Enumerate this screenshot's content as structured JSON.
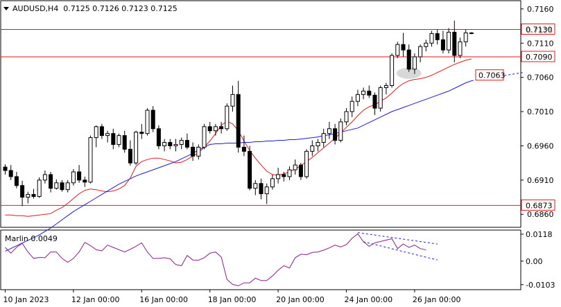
{
  "chart_data": [
    {
      "type": "candlestick",
      "title": "AUDUSD,H4  0.7125 0.7126 0.7123 0.7125",
      "ylim": [
        0.6841,
        0.7172
      ],
      "yticks": [
        {
          "value": 0.686,
          "label": "0.6860"
        },
        {
          "value": 0.691,
          "label": "0.6910"
        },
        {
          "value": 0.696,
          "label": "0.6960"
        },
        {
          "value": 0.701,
          "label": "0.7010"
        },
        {
          "value": 0.706,
          "label": "0.7060"
        },
        {
          "value": 0.711,
          "label": "0.7110"
        },
        {
          "value": 0.716,
          "label": "0.7160"
        }
      ],
      "xticks": [
        {
          "index": 0,
          "label": "10 Jan 2023"
        },
        {
          "index": 12,
          "label": "12 Jan 00:00"
        },
        {
          "index": 24,
          "label": "16 Jan 00:00"
        },
        {
          "index": 36,
          "label": "18 Jan 00:00"
        },
        {
          "index": 48,
          "label": "20 Jan 00:00"
        },
        {
          "index": 60,
          "label": "24 Jan 00:00"
        },
        {
          "index": 72,
          "label": "26 Jan 00:00"
        }
      ],
      "candles": [
        [
          0.6929,
          0.6933,
          0.6918,
          0.6924
        ],
        [
          0.6924,
          0.6932,
          0.691,
          0.6915
        ],
        [
          0.6915,
          0.6922,
          0.6898,
          0.6902
        ],
        [
          0.6902,
          0.6909,
          0.6872,
          0.6885
        ],
        [
          0.6885,
          0.6893,
          0.6876,
          0.6889
        ],
        [
          0.6889,
          0.6897,
          0.6883,
          0.6886
        ],
        [
          0.6886,
          0.6914,
          0.6884,
          0.691
        ],
        [
          0.691,
          0.6924,
          0.6905,
          0.6918
        ],
        [
          0.6918,
          0.6922,
          0.6892,
          0.6898
        ],
        [
          0.6898,
          0.6911,
          0.6896,
          0.6906
        ],
        [
          0.6906,
          0.691,
          0.6893,
          0.6896
        ],
        [
          0.6896,
          0.691,
          0.6892,
          0.6906
        ],
        [
          0.6906,
          0.6926,
          0.6902,
          0.6922
        ],
        [
          0.6922,
          0.6932,
          0.6906,
          0.691
        ],
        [
          0.691,
          0.6915,
          0.69,
          0.6907
        ],
        [
          0.6907,
          0.6975,
          0.6905,
          0.6972
        ],
        [
          0.6972,
          0.699,
          0.6958,
          0.6988
        ],
        [
          0.6988,
          0.6992,
          0.697,
          0.6975
        ],
        [
          0.6975,
          0.6982,
          0.6965,
          0.6978
        ],
        [
          0.6978,
          0.6985,
          0.6955,
          0.6962
        ],
        [
          0.6962,
          0.6978,
          0.6958,
          0.6975
        ],
        [
          0.6975,
          0.6982,
          0.695,
          0.6955
        ],
        [
          0.6955,
          0.6968,
          0.6931,
          0.6935
        ],
        [
          0.6935,
          0.6982,
          0.6932,
          0.698
        ],
        [
          0.698,
          0.6992,
          0.697,
          0.6978
        ],
        [
          0.6978,
          0.7015,
          0.6975,
          0.7012
        ],
        [
          0.7012,
          0.7018,
          0.698,
          0.6985
        ],
        [
          0.6985,
          0.699,
          0.6955,
          0.696
        ],
        [
          0.696,
          0.697,
          0.6952,
          0.6965
        ],
        [
          0.6965,
          0.697,
          0.6955,
          0.696
        ],
        [
          0.696,
          0.697,
          0.6952,
          0.6962
        ],
        [
          0.6962,
          0.6972,
          0.6955,
          0.6968
        ],
        [
          0.6968,
          0.6978,
          0.6955,
          0.6958
        ],
        [
          0.6958,
          0.6965,
          0.6938,
          0.6945
        ],
        [
          0.6945,
          0.6962,
          0.694,
          0.6958
        ],
        [
          0.6958,
          0.6992,
          0.6955,
          0.6988
        ],
        [
          0.6988,
          0.6995,
          0.6978,
          0.6982
        ],
        [
          0.6982,
          0.6992,
          0.6975,
          0.6988
        ],
        [
          0.6988,
          0.6995,
          0.6978,
          0.6985
        ],
        [
          0.6985,
          0.7022,
          0.6982,
          0.7018
        ],
        [
          0.7018,
          0.7048,
          0.701,
          0.7035
        ],
        [
          0.7035,
          0.7055,
          0.695,
          0.6958
        ],
        [
          0.6958,
          0.6975,
          0.6945,
          0.6952
        ],
        [
          0.6952,
          0.696,
          0.6895,
          0.6898
        ],
        [
          0.6898,
          0.691,
          0.6888,
          0.6905
        ],
        [
          0.6905,
          0.6912,
          0.6882,
          0.689
        ],
        [
          0.689,
          0.6905,
          0.6875,
          0.69
        ],
        [
          0.69,
          0.6918,
          0.6896,
          0.6912
        ],
        [
          0.6912,
          0.6928,
          0.6905,
          0.6918
        ],
        [
          0.6918,
          0.6922,
          0.6908,
          0.6915
        ],
        [
          0.6915,
          0.693,
          0.691,
          0.6925
        ],
        [
          0.6925,
          0.694,
          0.6918,
          0.6932
        ],
        [
          0.6932,
          0.6935,
          0.691,
          0.6915
        ],
        [
          0.6915,
          0.6955,
          0.6912,
          0.6952
        ],
        [
          0.6952,
          0.6968,
          0.6945,
          0.696
        ],
        [
          0.696,
          0.697,
          0.6952,
          0.6965
        ],
        [
          0.6965,
          0.6985,
          0.6958,
          0.6978
        ],
        [
          0.6978,
          0.6995,
          0.697,
          0.6985
        ],
        [
          0.6985,
          0.6992,
          0.6962,
          0.6968
        ],
        [
          0.6968,
          0.7,
          0.6965,
          0.6995
        ],
        [
          0.6995,
          0.7015,
          0.699,
          0.701
        ],
        [
          0.701,
          0.7032,
          0.7002,
          0.7025
        ],
        [
          0.7025,
          0.7042,
          0.7018,
          0.7035
        ],
        [
          0.7035,
          0.7045,
          0.7028,
          0.704
        ],
        [
          0.704,
          0.7048,
          0.703,
          0.7034
        ],
        [
          0.7034,
          0.7038,
          0.7005,
          0.7015
        ],
        [
          0.7015,
          0.7048,
          0.701,
          0.7045
        ],
        [
          0.7045,
          0.7052,
          0.7035,
          0.7048
        ],
        [
          0.7048,
          0.7095,
          0.7045,
          0.7092
        ],
        [
          0.7092,
          0.7112,
          0.7088,
          0.7108
        ],
        [
          0.7108,
          0.7125,
          0.709,
          0.71
        ],
        [
          0.71,
          0.7108,
          0.7068,
          0.7072
        ],
        [
          0.7072,
          0.7095,
          0.7065,
          0.709
        ],
        [
          0.709,
          0.7108,
          0.7082,
          0.7105
        ],
        [
          0.7105,
          0.7115,
          0.7098,
          0.711
        ],
        [
          0.711,
          0.7128,
          0.7105,
          0.7124
        ],
        [
          0.7124,
          0.713,
          0.7108,
          0.7115
        ],
        [
          0.7115,
          0.7128,
          0.7095,
          0.71
        ],
        [
          0.71,
          0.7132,
          0.7095,
          0.7126
        ],
        [
          0.7126,
          0.7143,
          0.7082,
          0.7092
        ],
        [
          0.7092,
          0.7118,
          0.7088,
          0.7112
        ],
        [
          0.7112,
          0.713,
          0.7105,
          0.7125
        ],
        [
          0.7125,
          0.7126,
          0.7123,
          0.7125
        ]
      ],
      "moving_averages": [
        {
          "color": "#e8161b",
          "values": [
            0.6859,
            0.6859,
            0.6858,
            0.6858,
            0.6857,
            0.6858,
            0.6859,
            0.686,
            0.6861,
            0.6866,
            0.687,
            0.6876,
            0.6883,
            0.689,
            0.6895,
            0.6897,
            0.6896,
            0.6894,
            0.6893,
            0.6894,
            0.6897,
            0.6902,
            0.6913,
            0.693,
            0.6937,
            0.694,
            0.6942,
            0.6942,
            0.694,
            0.6938,
            0.6935,
            0.6936,
            0.694,
            0.6945,
            0.695,
            0.6958,
            0.6967,
            0.6978,
            0.699,
            0.6996,
            0.6992,
            0.6982,
            0.6967,
            0.6953,
            0.6942,
            0.6932,
            0.6923,
            0.6918,
            0.6917,
            0.6919,
            0.6922,
            0.6926,
            0.6931,
            0.6937,
            0.6943,
            0.695,
            0.6957,
            0.6964,
            0.6971,
            0.6979,
            0.6987,
            0.6995,
            0.7004,
            0.7012,
            0.7017,
            0.702,
            0.7025,
            0.703,
            0.7037,
            0.7045,
            0.7051,
            0.7055,
            0.7057,
            0.7058,
            0.706,
            0.7063,
            0.7067,
            0.7071,
            0.7075,
            0.7079,
            0.7082,
            0.7085,
            0.7087
          ]
        },
        {
          "color": "#1b1bd0",
          "values": [
            0.6806,
            0.681,
            0.6814,
            0.6818,
            0.6822,
            0.6826,
            0.683,
            0.6835,
            0.684,
            0.6846,
            0.6852,
            0.6858,
            0.6864,
            0.6869,
            0.6874,
            0.6879,
            0.6884,
            0.6889,
            0.6894,
            0.6899,
            0.6904,
            0.6908,
            0.6912,
            0.6916,
            0.6919,
            0.6922,
            0.6925,
            0.6928,
            0.6931,
            0.6934,
            0.6937,
            0.6941,
            0.6945,
            0.6949,
            0.6954,
            0.6958,
            0.6962,
            0.6963,
            0.6963,
            0.6964,
            0.6964,
            0.6964,
            0.6965,
            0.6965,
            0.6966,
            0.6966,
            0.6967,
            0.6967,
            0.6968,
            0.6968,
            0.6969,
            0.6969,
            0.697,
            0.6971,
            0.6972,
            0.6973,
            0.6975,
            0.6976,
            0.6978,
            0.698,
            0.6982,
            0.6984,
            0.6986,
            0.699,
            0.6994,
            0.6998,
            0.7002,
            0.7006,
            0.701,
            0.7013,
            0.7016,
            0.7019,
            0.7022,
            0.7025,
            0.7028,
            0.7031,
            0.7034,
            0.7037,
            0.704,
            0.7044,
            0.7048,
            0.7052,
            0.7055
          ]
        }
      ],
      "forecast_line": {
        "color": "#1b1bd0",
        "from": [
          82,
          0.7055
        ],
        "to": [
          91,
          0.7067
        ]
      },
      "horizontal_levels": [
        {
          "value": 0.713,
          "label": "0.7130",
          "color": "#e8161b"
        },
        {
          "value": 0.709,
          "label": "0.7090",
          "color": "#e8161b"
        },
        {
          "value": 0.6873,
          "label": "0.6873",
          "color": "#e8161b"
        }
      ],
      "annotations": [
        {
          "type": "price-label",
          "value": 0.7063,
          "label": "0.7063",
          "color": "#e8161b"
        },
        {
          "type": "highlight-ellipse",
          "index": 71,
          "value": 0.7066,
          "color": "#c8c8c8"
        }
      ],
      "hidden_tick_label": "0.7125"
    },
    {
      "type": "line",
      "title": "Marlin 0.0049",
      "ylim": [
        -0.0125,
        0.0136
      ],
      "yticks": [
        {
          "value": 0.0118,
          "label": "0.0118"
        },
        {
          "value": 0.0,
          "label": "0.00"
        },
        {
          "value": -0.0103,
          "label": "-0.0103"
        }
      ],
      "series": [
        {
          "color": "#8b1a8b",
          "values": [
            0.006,
            0.0035,
            0.006,
            0.0078,
            0.004,
            0.0012,
            0.0016,
            0.0015,
            0.004,
            0.004,
            0.0012,
            -0.0005,
            0.0012,
            0.004,
            0.0082,
            0.0068,
            0.005,
            0.0045,
            0.007,
            0.006,
            0.005,
            0.004,
            0.0052,
            0.0065,
            0.008,
            0.004,
            0.0012,
            0.0012,
            0.0015,
            0.001,
            -0.0015,
            -0.002,
            0.0025,
            0.0005,
            0.0004,
            0.0015,
            0.0035,
            0.004,
            0.0018,
            -0.008,
            -0.0102,
            -0.0108,
            -0.0095,
            -0.0095,
            -0.0075,
            -0.0085,
            -0.0085,
            -0.0065,
            -0.004,
            -0.002,
            -0.003,
            0.0015,
            0.003,
            0.0028,
            0.0038,
            0.004,
            0.0048,
            0.0058,
            0.007,
            0.0062,
            0.0072,
            0.01,
            0.012,
            0.0085,
            0.0065,
            0.008,
            0.0086,
            0.0092,
            0.0098,
            0.0055,
            0.0075,
            0.006,
            0.007,
            0.0055,
            0.0049
          ]
        }
      ],
      "trend_lines": [
        {
          "color": "#1b1bd0",
          "from": [
            62,
            0.0125
          ],
          "to": [
            76,
            0.0075
          ]
        },
        {
          "color": "#1b1bd0",
          "from": [
            63,
            0.0085
          ],
          "to": [
            76,
            0.0005
          ]
        }
      ]
    }
  ]
}
